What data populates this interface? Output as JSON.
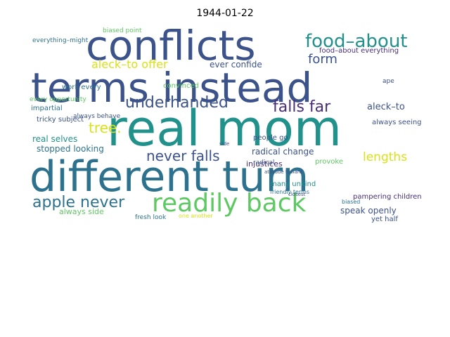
{
  "figure": {
    "title": "1944-01-22"
  },
  "palette": {
    "navy": "#3b528b",
    "teal": "#21918c",
    "green": "#5ec962",
    "yellow": "#d8e219",
    "purple": "#472d7b",
    "slate": "#2c728e"
  },
  "words": [
    {
      "text": "real mom"
    },
    {
      "text": "terms instead"
    },
    {
      "text": "different turn"
    },
    {
      "text": "conflicts"
    },
    {
      "text": "readily back"
    },
    {
      "text": "food–about"
    },
    {
      "text": "underhanded"
    },
    {
      "text": "falls far"
    },
    {
      "text": "apple never"
    },
    {
      "text": "never falls"
    },
    {
      "text": "tree."
    },
    {
      "text": "aleck–to offer"
    },
    {
      "text": "form"
    },
    {
      "text": "lengths"
    },
    {
      "text": "ever confide"
    },
    {
      "text": "food–about everything"
    },
    {
      "text": "stopped looking"
    },
    {
      "text": "real selves"
    },
    {
      "text": "radical change"
    },
    {
      "text": "speak openly"
    },
    {
      "text": "always side"
    },
    {
      "text": "aleck–to"
    },
    {
      "text": "work every"
    },
    {
      "text": "convinced"
    },
    {
      "text": "tricky subject"
    },
    {
      "text": "impartial"
    },
    {
      "text": "every opportunity"
    },
    {
      "text": "always behave"
    },
    {
      "text": "injustices"
    },
    {
      "text": "people go"
    },
    {
      "text": "radical"
    },
    {
      "text": "many unkind"
    },
    {
      "text": "friendly terms"
    },
    {
      "text": "provoke"
    },
    {
      "text": "yet half"
    },
    {
      "text": "biased"
    },
    {
      "text": "fresh look"
    },
    {
      "text": "one another"
    },
    {
      "text": "always seeing"
    },
    {
      "text": "pampering children"
    },
    {
      "text": "everything–might"
    },
    {
      "text": "biased point"
    },
    {
      "text": "attitude toward"
    },
    {
      "text": "closest"
    },
    {
      "text": "ape"
    },
    {
      "text": "side"
    }
  ]
}
